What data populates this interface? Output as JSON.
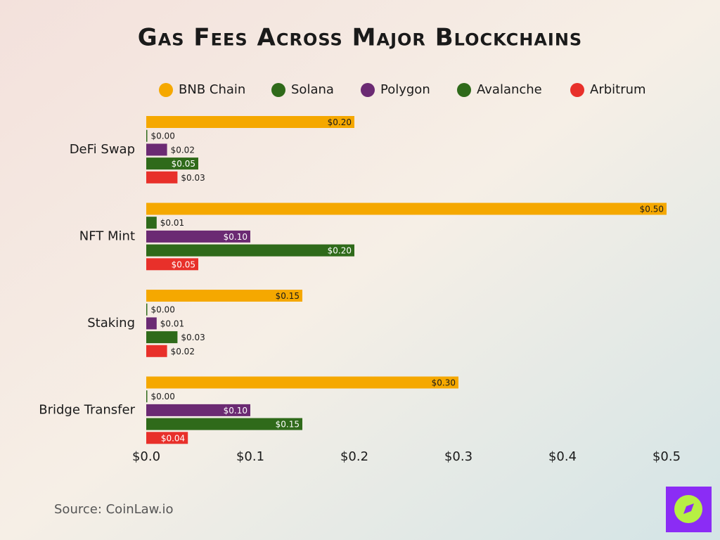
{
  "chart_data": {
    "type": "bar",
    "orientation": "horizontal",
    "title": "Gas Fees Across Major Blockchains",
    "categories": [
      "DeFi Swap",
      "NFT Mint",
      "Staking",
      "Bridge Transfer"
    ],
    "series": [
      {
        "name": "BNB Chain",
        "color": "#f5a800",
        "values": [
          0.2,
          0.5,
          0.15,
          0.3
        ],
        "value_labels": [
          "$0.20",
          "$0.50",
          "$0.15",
          "$0.30"
        ]
      },
      {
        "name": "Solana",
        "color": "#2f6a1a",
        "values": [
          0.001,
          0.01,
          0.001,
          0.001
        ],
        "value_labels": [
          "$0.00",
          "$0.01",
          "$0.00",
          "$0.00"
        ]
      },
      {
        "name": "Polygon",
        "color": "#6b2a73",
        "values": [
          0.02,
          0.1,
          0.01,
          0.1
        ],
        "value_labels": [
          "$0.02",
          "$0.10",
          "$0.01",
          "$0.10"
        ]
      },
      {
        "name": "Avalanche",
        "color": "#2f6a1a",
        "values": [
          0.05,
          0.2,
          0.03,
          0.15
        ],
        "value_labels": [
          "$0.05",
          "$0.20",
          "$0.03",
          "$0.15"
        ]
      },
      {
        "name": "Arbitrum",
        "color": "#e8302a",
        "values": [
          0.03,
          0.05,
          0.02,
          0.04
        ],
        "value_labels": [
          "$0.03",
          "$0.05",
          "$0.02",
          "$0.04"
        ]
      }
    ],
    "xlim": [
      0,
      0.5
    ],
    "xticks": [
      {
        "value": 0,
        "label": "$0.0"
      },
      {
        "value": 0.1,
        "label": "$0.1"
      },
      {
        "value": 0.2,
        "label": "$0.2"
      },
      {
        "value": 0.3,
        "label": "$0.3"
      },
      {
        "value": 0.4,
        "label": "$0.4"
      },
      {
        "value": 0.5,
        "label": "$0.5"
      }
    ],
    "legend": "top",
    "source": "Source: CoinLaw.io"
  }
}
